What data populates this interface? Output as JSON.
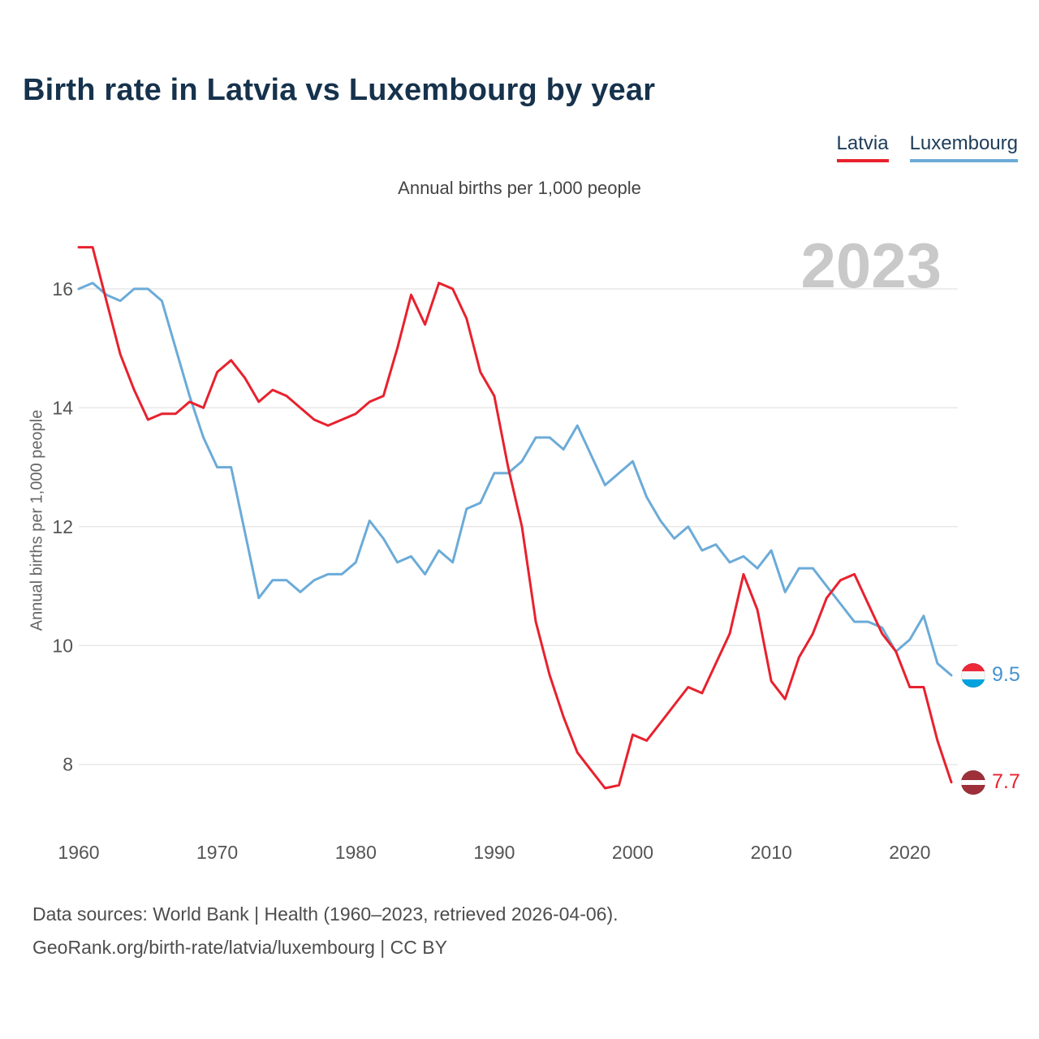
{
  "page": {
    "title": "Birth rate in Latvia vs Luxembourg by year",
    "subtitle": "Annual births per 1,000 people",
    "y_axis_label": "Annual births per 1,000 people",
    "watermark": "2023",
    "footer_line1": "Data sources: World Bank | Health (1960–2023, retrieved 2026-04-06).",
    "footer_line2": "GeoRank.org/birth-rate/latvia/luxembourg | CC BY"
  },
  "legend": {
    "items": [
      {
        "label": "Latvia",
        "color": "#e8212e"
      },
      {
        "label": "Luxembourg",
        "color": "#6babd8"
      }
    ]
  },
  "end_labels": [
    {
      "series": "Luxembourg",
      "value": "9.5",
      "color": "#4593d0",
      "flag": {
        "name": "luxembourg-flag",
        "stripes": [
          {
            "color": "#ED2939",
            "from": 0,
            "to": 34
          },
          {
            "color": "#F7F7F7",
            "from": 34,
            "to": 66
          },
          {
            "color": "#00A3E0",
            "from": 66,
            "to": 100
          }
        ]
      }
    },
    {
      "series": "Latvia",
      "value": "7.7",
      "color": "#e8212e",
      "flag": {
        "name": "latvia-flag",
        "stripes": [
          {
            "color": "#9E3039",
            "from": 0,
            "to": 40
          },
          {
            "color": "#FFFFFF",
            "from": 40,
            "to": 60
          },
          {
            "color": "#9E3039",
            "from": 60,
            "to": 100
          }
        ]
      }
    }
  ],
  "chart_data": {
    "type": "line",
    "title": "Birth rate in Latvia vs Luxembourg by year",
    "subtitle": "Annual births per 1,000 people",
    "xlabel": "",
    "ylabel": "Annual births per 1,000 people",
    "ylim": [
      7.3,
      16.9
    ],
    "yticks": [
      8,
      10,
      12,
      14,
      16
    ],
    "xticks": [
      1960,
      1970,
      1980,
      1990,
      2000,
      2010,
      2020
    ],
    "grid": "horizontal",
    "legend_position": "top-right",
    "x": [
      1960,
      1961,
      1962,
      1963,
      1964,
      1965,
      1966,
      1967,
      1968,
      1969,
      1970,
      1971,
      1972,
      1973,
      1974,
      1975,
      1976,
      1977,
      1978,
      1979,
      1980,
      1981,
      1982,
      1983,
      1984,
      1985,
      1986,
      1987,
      1988,
      1989,
      1990,
      1991,
      1992,
      1993,
      1994,
      1995,
      1996,
      1997,
      1998,
      1999,
      2000,
      2001,
      2002,
      2003,
      2004,
      2005,
      2006,
      2007,
      2008,
      2009,
      2010,
      2011,
      2012,
      2013,
      2014,
      2015,
      2016,
      2017,
      2018,
      2019,
      2020,
      2021,
      2022,
      2023
    ],
    "series": [
      {
        "name": "Latvia",
        "color": "#e8212e",
        "values": [
          16.7,
          16.7,
          15.8,
          14.9,
          14.3,
          13.8,
          13.9,
          13.9,
          14.1,
          14.0,
          14.6,
          14.8,
          14.5,
          14.1,
          14.3,
          14.2,
          14.0,
          13.8,
          13.7,
          13.8,
          13.9,
          14.1,
          14.2,
          15.0,
          15.9,
          15.4,
          16.1,
          16.0,
          15.5,
          14.6,
          14.2,
          13.0,
          12.0,
          10.4,
          9.5,
          8.8,
          8.2,
          7.9,
          7.6,
          7.65,
          8.5,
          8.4,
          8.7,
          9.0,
          9.3,
          9.2,
          9.7,
          10.2,
          11.2,
          10.6,
          9.4,
          9.1,
          9.8,
          10.2,
          10.8,
          11.1,
          11.2,
          10.7,
          10.2,
          9.9,
          9.3,
          9.3,
          8.4,
          7.7
        ]
      },
      {
        "name": "Luxembourg",
        "color": "#6babd8",
        "values": [
          16.0,
          16.1,
          15.9,
          15.8,
          16.0,
          16.0,
          15.8,
          15.0,
          14.2,
          13.5,
          13.0,
          13.0,
          11.9,
          10.8,
          11.1,
          11.1,
          10.9,
          11.1,
          11.2,
          11.2,
          11.4,
          12.1,
          11.8,
          11.4,
          11.5,
          11.2,
          11.6,
          11.4,
          12.3,
          12.4,
          12.9,
          12.9,
          13.1,
          13.5,
          13.5,
          13.3,
          13.7,
          13.2,
          12.7,
          12.9,
          13.1,
          12.5,
          12.1,
          11.8,
          12.0,
          11.6,
          11.7,
          11.4,
          11.5,
          11.3,
          11.6,
          10.9,
          11.3,
          11.3,
          11.0,
          10.7,
          10.4,
          10.4,
          10.3,
          9.9,
          10.1,
          10.5,
          9.7,
          9.5
        ]
      }
    ]
  }
}
